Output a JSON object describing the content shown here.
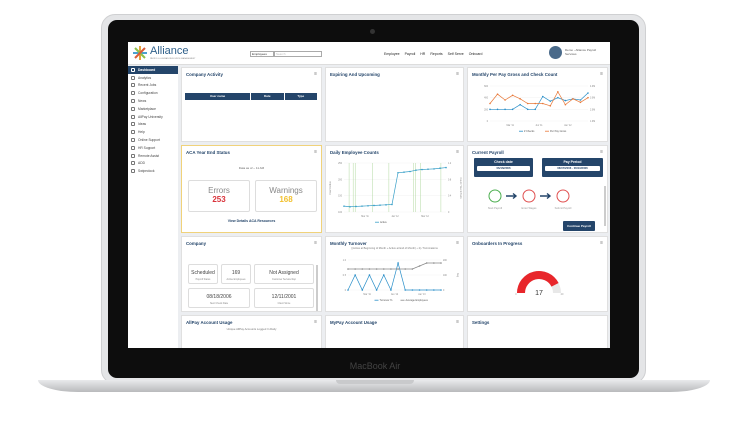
{
  "device": {
    "label": "MacBook Air"
  },
  "header": {
    "logo_text": "Alliance",
    "logo_subtext": "PAYROLL & HUMAN RESOURCE MANAGEMENT",
    "search_select": "Employees",
    "search_placeholder": "Search",
    "nav": [
      "Employee",
      "Payroll",
      "HR",
      "Reports",
      "Self Serve",
      "Onboard"
    ],
    "user": "Demo - Alliance Payroll Services"
  },
  "sidebar": {
    "items": [
      "Dashboard",
      "Analytics",
      "Recent Jobs",
      "Configuration",
      "News",
      "Marketplace",
      "AllPay University",
      "Ideas",
      "Help",
      "Online Support",
      "HR Support",
      "Remote Assist",
      "ADD",
      "Swipeclock"
    ]
  },
  "company_activity": {
    "title": "Company Activity",
    "columns": [
      "User name",
      "Date",
      "Type"
    ]
  },
  "expiring": {
    "title": "Expiring And Upcoming"
  },
  "monthly_gross": {
    "title": "Monthly Per Pay Gross and Check Count"
  },
  "aca": {
    "title": "ACA Year End Status",
    "subtitle": "Data as of ~ 11 AM",
    "errors_label": "Errors",
    "errors": "253",
    "warnings_label": "Warnings",
    "warnings": "168",
    "link": "View Details ACA Resources"
  },
  "daily_counts": {
    "title": "Daily Employee Counts"
  },
  "payroll": {
    "title": "Current Payroll",
    "check_date_label": "Check date",
    "check_date": "06/16/2006",
    "pay_period_label": "Pay Period",
    "pay_period": "06/07/2006 - 06/13/2006",
    "steps": [
      "Start Payroll",
      "Enter Wages",
      "Submit Payroll"
    ],
    "continue": "Continue Payroll"
  },
  "company": {
    "title": "Company",
    "stats": [
      {
        "value": "Scheduled",
        "label": "Payroll Status"
      },
      {
        "value": "169",
        "label": "Active Employees"
      },
      {
        "value": "Not Assigned",
        "label": "Customer Service Rep"
      },
      {
        "value": "08/18/2006",
        "label": "Next Check Date"
      },
      {
        "value": "12/11/2001",
        "label": "Client Since"
      }
    ]
  },
  "turnover": {
    "title": "Monthly Turnover"
  },
  "onboarders": {
    "title": "Onboarders In Progress",
    "value": "17",
    "min": "0",
    "max": "20",
    "fraction": 0.85,
    "color": "#e8262b"
  },
  "allpay": {
    "title": "AllPay Account Usage"
  },
  "mypay": {
    "title": "MyPay Account Usage"
  },
  "settings": {
    "title": "Settings"
  },
  "chart_data": [
    {
      "id": "gross",
      "type": "line",
      "title": "Monthly Per Pay Gross and Check Count",
      "ylabel": "Checks",
      "y2label": "Per Pay Gross",
      "categories_ticks": [
        "Mar '11",
        "Jun '11",
        "Jan '12"
      ],
      "yticks": [
        "0",
        "200",
        "400",
        "600"
      ],
      "y2ticks": [
        "1.0M",
        "2.0M",
        "3.0M",
        "4.0M"
      ],
      "ylim": [
        0,
        600
      ],
      "y2lim": [
        1,
        4
      ],
      "series": [
        {
          "name": "# Checks",
          "color": "#2a8fc9",
          "axis": "y",
          "values": [
            200,
            200,
            200,
            200,
            280,
            200,
            200,
            420,
            340,
            400,
            350,
            380,
            360,
            480
          ]
        },
        {
          "name": "Per Pay Gross",
          "color": "#e8793a",
          "axis": "y2",
          "values": [
            2.5,
            3.3,
            2.8,
            3.2,
            2.9,
            2.5,
            2.5,
            2.5,
            2.3,
            3.5,
            2.4,
            2.9,
            2.6,
            3.0
          ]
        }
      ]
    },
    {
      "id": "daily",
      "type": "line",
      "title": "Daily Employee Counts",
      "ylabel": "Count Active",
      "y2label": "Count Hired & Term",
      "x_ticks": [
        "Mar '11",
        "Jan '12",
        "Mar '12"
      ],
      "yticks": [
        "100",
        "150",
        "200",
        "250"
      ],
      "y2ticks": [
        "0",
        "0.4",
        "0.8",
        "1.2"
      ],
      "ylim": [
        100,
        250
      ],
      "series": [
        {
          "name": "Active",
          "color": "#3aa0c8",
          "values": [
            118,
            116,
            117,
            118,
            119,
            120,
            121,
            122,
            123,
            220,
            222,
            224,
            228,
            230,
            231,
            232,
            234,
            236
          ]
        }
      ]
    },
    {
      "id": "turnover",
      "type": "line",
      "title": "Monthly Turnover",
      "subtitle": "((Active at Beginning of Month + Active at End of Month) ÷ 2) / Terminations",
      "ylabel": "Turnover",
      "y2label": "Avg",
      "x_ticks": [
        "Mar '11",
        "Jan '12",
        "Jan '13"
      ],
      "yticks": [
        "0",
        "0.5",
        "1.0"
      ],
      "y2ticks": [
        "0",
        "100",
        "200"
      ],
      "ylim": [
        0,
        1
      ],
      "y2lim": [
        0,
        200
      ],
      "series": [
        {
          "name": "Turnover %",
          "color": "#2a8fc9",
          "axis": "y",
          "values": [
            0,
            0.5,
            0,
            0.5,
            0,
            0.5,
            0,
            0.9,
            0,
            0,
            0,
            0,
            0,
            0
          ]
        },
        {
          "name": "Average Employees",
          "color": "#888888",
          "axis": "y2",
          "values": [
            140,
            140,
            140,
            140,
            140,
            140,
            140,
            140,
            140,
            140,
            160,
            180,
            180,
            180
          ]
        }
      ]
    },
    {
      "id": "allpay",
      "type": "line",
      "title": "AllPay Account Usage",
      "subtitle": "Unique AllPay Accounts Logged In Daily"
    },
    {
      "id": "mypay",
      "type": "line",
      "title": "MyPay Account Usage"
    }
  ]
}
